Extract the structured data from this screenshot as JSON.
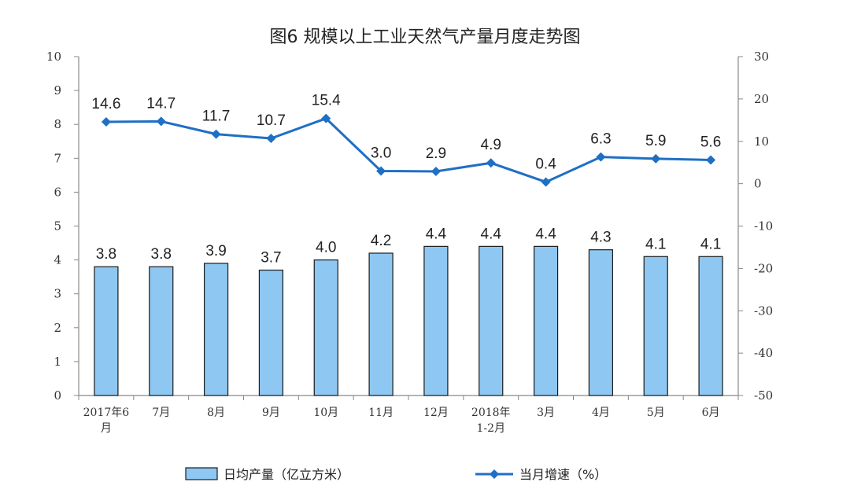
{
  "chart_data": {
    "type": "bar+line",
    "title": "图6  规模以上工业天然气产量月度走势图",
    "categories": [
      [
        "2017年6",
        "月"
      ],
      [
        "7月"
      ],
      [
        "8月"
      ],
      [
        "9月"
      ],
      [
        "10月"
      ],
      [
        "11月"
      ],
      [
        "12月"
      ],
      [
        "2018年",
        "1-2月"
      ],
      [
        "3月"
      ],
      [
        "4月"
      ],
      [
        "5月"
      ],
      [
        "6月"
      ]
    ],
    "series": [
      {
        "name": "日均产量（亿立方米）",
        "type": "bar",
        "axis": "left",
        "values": [
          3.8,
          3.8,
          3.9,
          3.7,
          4.0,
          4.2,
          4.4,
          4.4,
          4.4,
          4.3,
          4.1,
          4.1
        ],
        "labels": [
          "3.8",
          "3.8",
          "3.9",
          "3.7",
          "4.0",
          "4.2",
          "4.4",
          "4.4",
          "4.4",
          "4.3",
          "4.1",
          "4.1"
        ],
        "color": "#8EC8F2"
      },
      {
        "name": "当月增速（%）",
        "type": "line",
        "axis": "right",
        "values": [
          14.6,
          14.7,
          11.7,
          10.7,
          15.4,
          3.0,
          2.9,
          4.9,
          0.4,
          6.3,
          5.9,
          5.6
        ],
        "labels": [
          "14.6",
          "14.7",
          "11.7",
          "10.7",
          "15.4",
          "3.0",
          "2.9",
          "4.9",
          "0.4",
          "6.3",
          "5.9",
          "5.6"
        ],
        "color": "#1F6FC5"
      }
    ],
    "left_axis": {
      "min": 0,
      "max": 10,
      "step": 1,
      "ticks": [
        "0",
        "1",
        "2",
        "3",
        "4",
        "5",
        "6",
        "7",
        "8",
        "9",
        "10"
      ]
    },
    "right_axis": {
      "min": -50,
      "max": 30,
      "step": 10,
      "ticks": [
        "-50",
        "-40",
        "-30",
        "-20",
        "-10",
        "0",
        "10",
        "20",
        "30"
      ]
    },
    "grid": false,
    "legend_position": "bottom"
  }
}
